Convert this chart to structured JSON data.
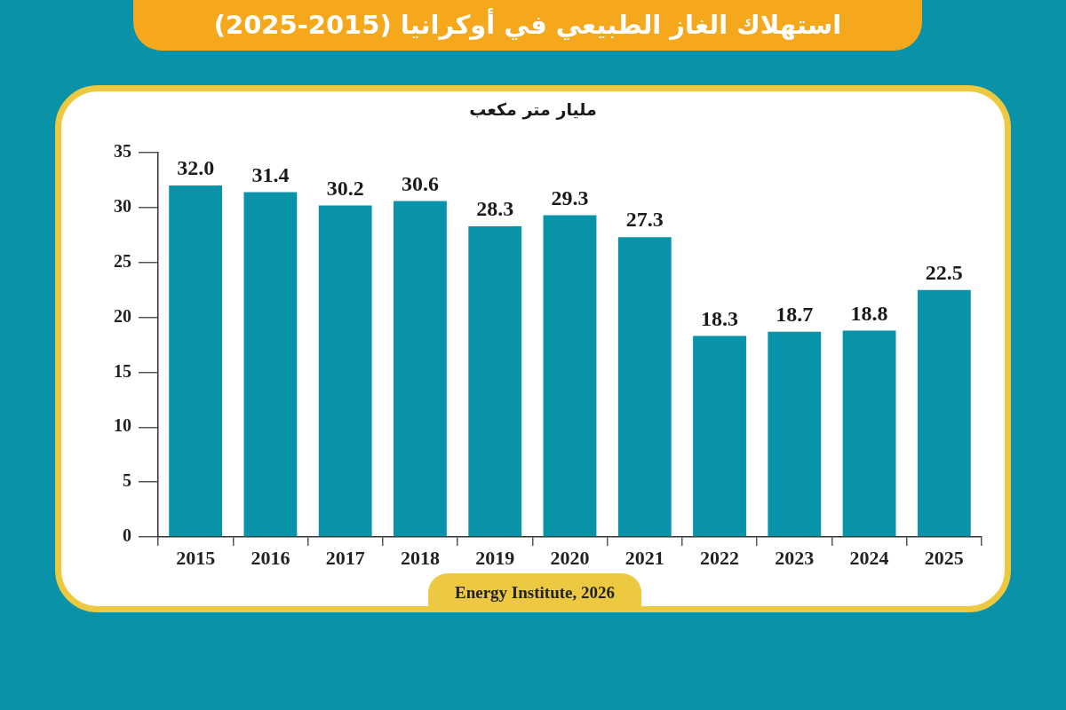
{
  "chart_data": {
    "type": "bar",
    "title": "استهلاك الغاز الطبيعي في أوكرانيا (2015-2025)",
    "ylabel": "مليار متر مكعب",
    "categories": [
      "2015",
      "2016",
      "2017",
      "2018",
      "2019",
      "2020",
      "2021",
      "2022",
      "2023",
      "2024",
      "2025"
    ],
    "values": [
      32.0,
      31.4,
      30.2,
      30.6,
      28.3,
      29.3,
      27.3,
      18.3,
      18.7,
      18.8,
      22.5
    ],
    "value_labels": [
      "32.0",
      "31.4",
      "30.2",
      "30.6",
      "28.3",
      "29.3",
      "27.3",
      "18.3",
      "18.7",
      "18.8",
      "22.5"
    ],
    "color": "#0893a9",
    "ylim": [
      0,
      35
    ],
    "yticks": [
      0,
      5,
      10,
      15,
      20,
      25,
      30,
      35
    ],
    "annotations": [
      "Energy Institute, 2026"
    ]
  }
}
